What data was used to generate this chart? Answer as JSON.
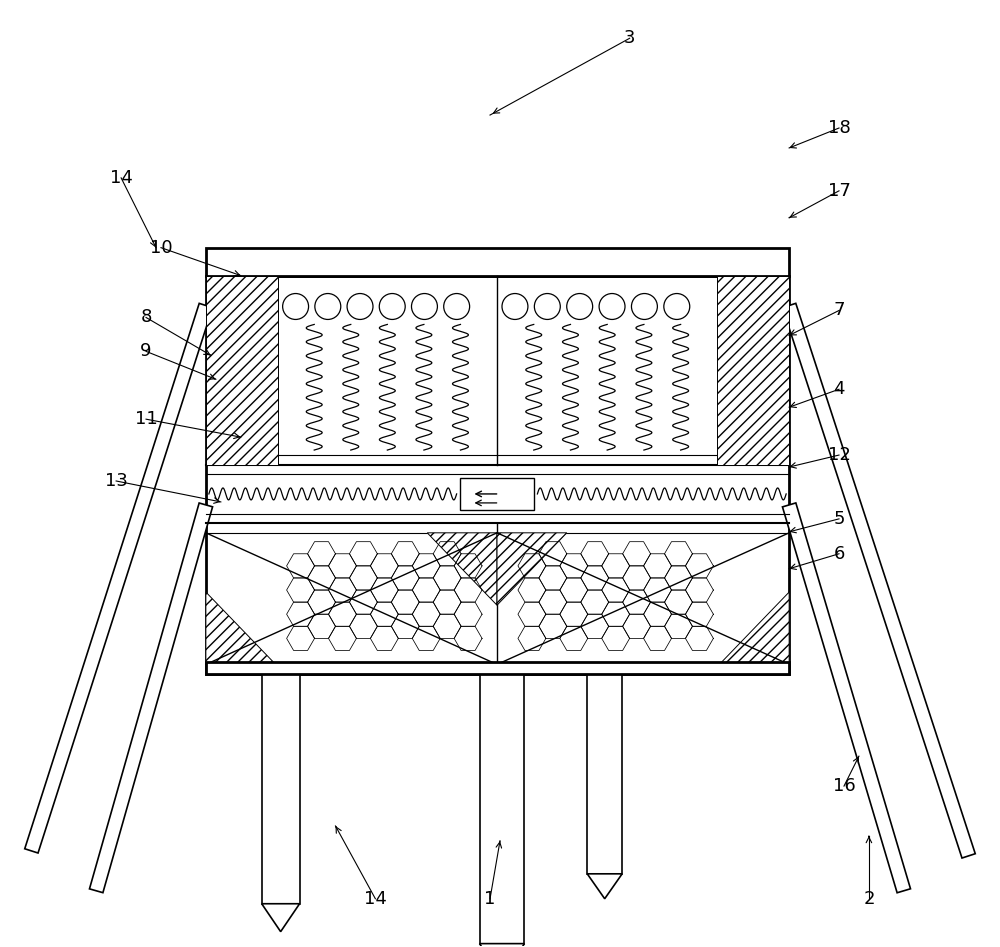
{
  "bg_color": "#ffffff",
  "line_color": "#000000",
  "lw": 1.2,
  "fig_w": 10.0,
  "fig_h": 9.47,
  "dpi": 100
}
